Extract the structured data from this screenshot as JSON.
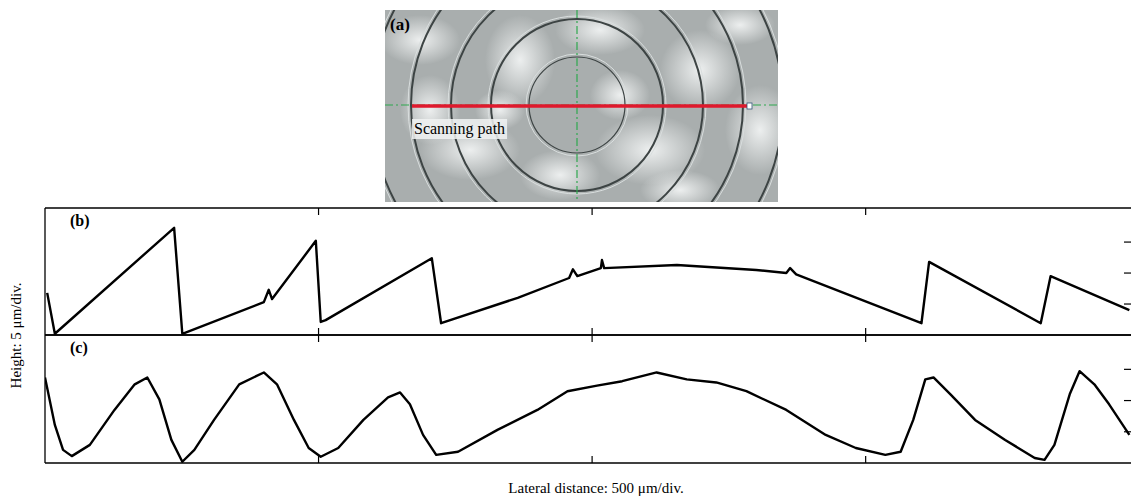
{
  "figure": {
    "panel_a": {
      "title": "(a)",
      "annotation": "Scanning path"
    },
    "x_label": "Lateral distance: 500 μm/div.",
    "y_label": "Height: 5 μm/div."
  },
  "chart_data": [
    {
      "type": "line",
      "title": "(b)",
      "color": "#000000",
      "tick_labels": false,
      "xlim": [
        0,
        1985
      ],
      "xticks": [
        500,
        1000,
        1500
      ],
      "ylim": [
        0,
        20.5
      ],
      "yticks": [
        5,
        10,
        15
      ],
      "x": [
        4,
        18,
        236,
        251,
        400,
        409,
        415,
        495,
        504,
        513,
        707,
        724,
        864,
        958,
        965,
        973,
        1016,
        1018,
        1022,
        1155,
        1300,
        1355,
        1362,
        1373,
        1602,
        1616,
        1820,
        1838,
        1982
      ],
      "values": [
        6.8,
        0.2,
        17.3,
        0.2,
        5.3,
        7.3,
        5.8,
        15.2,
        2.1,
        2.4,
        12.4,
        1.9,
        6.0,
        9.2,
        10.6,
        9.5,
        10.8,
        12.1,
        10.8,
        11.3,
        10.5,
        10.0,
        10.8,
        9.8,
        1.9,
        11.8,
        1.9,
        9.5,
        4.0
      ]
    },
    {
      "type": "line",
      "title": "(c)",
      "color": "#000000",
      "tick_labels": false,
      "xlim": [
        0,
        1985
      ],
      "xticks": [
        500,
        1000,
        1500
      ],
      "ylim": [
        0,
        20.5
      ],
      "yticks": [
        5,
        10,
        15
      ],
      "x": [
        0,
        18,
        33,
        49,
        82,
        127,
        164,
        187,
        209,
        231,
        251,
        273,
        309,
        355,
        400,
        424,
        455,
        482,
        504,
        536,
        582,
        627,
        649,
        667,
        691,
        715,
        755,
        827,
        900,
        955,
        1009,
        1055,
        1118,
        1173,
        1227,
        1282,
        1355,
        1427,
        1482,
        1536,
        1564,
        1587,
        1609,
        1624,
        1655,
        1700,
        1755,
        1809,
        1827,
        1845,
        1873,
        1891,
        1918,
        1945,
        1982
      ],
      "values": [
        13.7,
        6.1,
        2.1,
        1.1,
        2.9,
        8.5,
        12.6,
        13.7,
        10.2,
        3.7,
        0.2,
        2.1,
        6.9,
        12.6,
        14.5,
        12.6,
        6.9,
        2.4,
        1.0,
        2.4,
        6.9,
        10.5,
        11.3,
        9.4,
        4.5,
        1.3,
        1.8,
        5.3,
        8.5,
        11.5,
        12.4,
        13.1,
        14.5,
        13.4,
        12.9,
        11.5,
        8.5,
        4.5,
        2.4,
        1.3,
        1.8,
        6.9,
        13.4,
        13.7,
        11.0,
        6.9,
        3.7,
        0.8,
        0.5,
        2.9,
        11.0,
        14.7,
        12.6,
        9.4,
        4.5
      ]
    }
  ]
}
